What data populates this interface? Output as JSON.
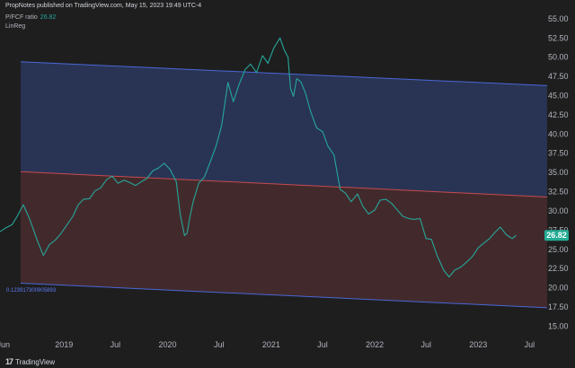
{
  "header": {
    "published": "PropNotes published on TradingView.com, May 15, 2023 19:49 UTC-4",
    "symbol": "P/FCF ratio",
    "symbol_value": "26.82",
    "indicator": "LinReg"
  },
  "footer": {
    "logo": "17",
    "brand": "TradingView"
  },
  "chart_data": {
    "type": "line",
    "title": "P/FCF ratio",
    "indicator": "LinReg",
    "last_value": 26.82,
    "x_tick_labels": [
      "Jun",
      "2019",
      "Jul",
      "2020",
      "Jul",
      "2021",
      "Jul",
      "2022",
      "Jul",
      "2023",
      "Jul"
    ],
    "x_tick_dates": [
      "2018-06-01",
      "2019-01-01",
      "2019-07-01",
      "2020-01-01",
      "2020-07-01",
      "2021-01-01",
      "2021-07-01",
      "2022-01-01",
      "2022-07-01",
      "2023-01-01",
      "2023-07-01"
    ],
    "y_ticks": [
      "15.00",
      "17.50",
      "20.00",
      "22.50",
      "25.00",
      "27.50",
      "30.00",
      "32.50",
      "35.00",
      "37.50",
      "40.00",
      "42.50",
      "45.00",
      "47.50",
      "50.00",
      "52.50",
      "55.00"
    ],
    "ylim": [
      14,
      56.5
    ],
    "xlim": [
      "2018-05-20",
      "2023-08-10"
    ],
    "regression_channel": {
      "start_date": "2018-08-01",
      "end_date": "2023-09-01",
      "upper": [
        49.4,
        46.3
      ],
      "middle": [
        35.1,
        31.8
      ],
      "lower": [
        20.6,
        17.4
      ],
      "deviation_label": "0.123917300905893"
    },
    "series": [
      {
        "x": [
          "2018-05-20",
          "2018-06-10",
          "2018-07-01",
          "2018-07-20",
          "2018-08-10",
          "2018-09-01",
          "2018-10-01",
          "2018-10-20",
          "2018-11-10",
          "2018-12-01",
          "2018-12-20",
          "2019-01-10",
          "2019-02-01",
          "2019-02-20",
          "2019-03-10",
          "2019-04-01",
          "2019-04-20",
          "2019-05-10",
          "2019-06-01",
          "2019-06-20",
          "2019-07-10",
          "2019-08-01",
          "2019-08-20",
          "2019-09-10",
          "2019-10-01",
          "2019-10-20",
          "2019-11-10",
          "2019-12-01",
          "2019-12-20",
          "2020-01-10",
          "2020-02-01",
          "2020-02-15",
          "2020-03-01",
          "2020-03-10",
          "2020-03-20",
          "2020-04-01",
          "2020-04-20",
          "2020-05-10",
          "2020-06-01",
          "2020-06-20",
          "2020-07-10",
          "2020-08-01",
          "2020-08-20",
          "2020-09-10",
          "2020-10-01",
          "2020-10-20",
          "2020-11-10",
          "2020-12-01",
          "2020-12-20",
          "2021-01-10",
          "2021-02-01",
          "2021-02-15",
          "2021-03-01",
          "2021-03-10",
          "2021-03-20",
          "2021-04-01",
          "2021-04-15",
          "2021-05-01",
          "2021-05-20",
          "2021-06-10",
          "2021-07-01",
          "2021-07-20",
          "2021-08-10",
          "2021-09-01",
          "2021-09-20",
          "2021-10-10",
          "2021-11-01",
          "2021-11-20",
          "2021-12-10",
          "2022-01-01",
          "2022-01-20",
          "2022-02-10",
          "2022-03-01",
          "2022-03-20",
          "2022-04-10",
          "2022-05-01",
          "2022-05-20",
          "2022-06-10",
          "2022-07-01",
          "2022-07-20",
          "2022-08-10",
          "2022-09-01",
          "2022-09-20",
          "2022-10-10",
          "2022-11-01",
          "2022-11-20",
          "2022-12-10",
          "2023-01-01",
          "2023-01-20",
          "2023-02-10",
          "2023-03-01",
          "2023-03-20",
          "2023-04-10",
          "2023-05-01",
          "2023-05-15"
        ],
        "y": [
          27.3,
          27.8,
          28.2,
          29.3,
          30.8,
          29.0,
          25.9,
          24.2,
          25.6,
          26.2,
          27.0,
          28.1,
          29.3,
          30.8,
          31.5,
          31.6,
          32.6,
          33.0,
          34.1,
          34.5,
          33.6,
          34.0,
          33.7,
          33.3,
          33.8,
          34.2,
          35.2,
          35.6,
          36.2,
          35.4,
          33.8,
          29.5,
          26.8,
          27.1,
          29.2,
          31.3,
          33.6,
          34.4,
          36.5,
          38.4,
          41.1,
          46.7,
          44.2,
          46.5,
          48.4,
          49.1,
          48.0,
          50.2,
          49.2,
          51.2,
          52.5,
          51.0,
          50.0,
          45.9,
          44.9,
          47.2,
          46.8,
          45.4,
          42.9,
          40.8,
          40.3,
          38.4,
          37.3,
          32.8,
          32.3,
          31.2,
          32.2,
          30.6,
          29.6,
          30.1,
          31.4,
          31.5,
          31.0,
          30.2,
          29.3,
          29.0,
          28.9,
          29.0,
          26.4,
          26.3,
          24.1,
          22.3,
          21.4,
          22.3,
          22.7,
          23.3,
          24.0,
          25.2,
          25.8,
          26.4,
          27.2,
          27.9,
          26.9,
          26.4,
          26.82
        ]
      }
    ],
    "colors": {
      "line": "#26a69a",
      "upper_fill": "#2a3657",
      "lower_fill": "#442b2d",
      "upper_line": "#4a67d8",
      "middle_line": "#c94a50",
      "lower_line": "#4a67d8",
      "label_bg": "#22ab94",
      "background": "#1e1e1e"
    }
  }
}
